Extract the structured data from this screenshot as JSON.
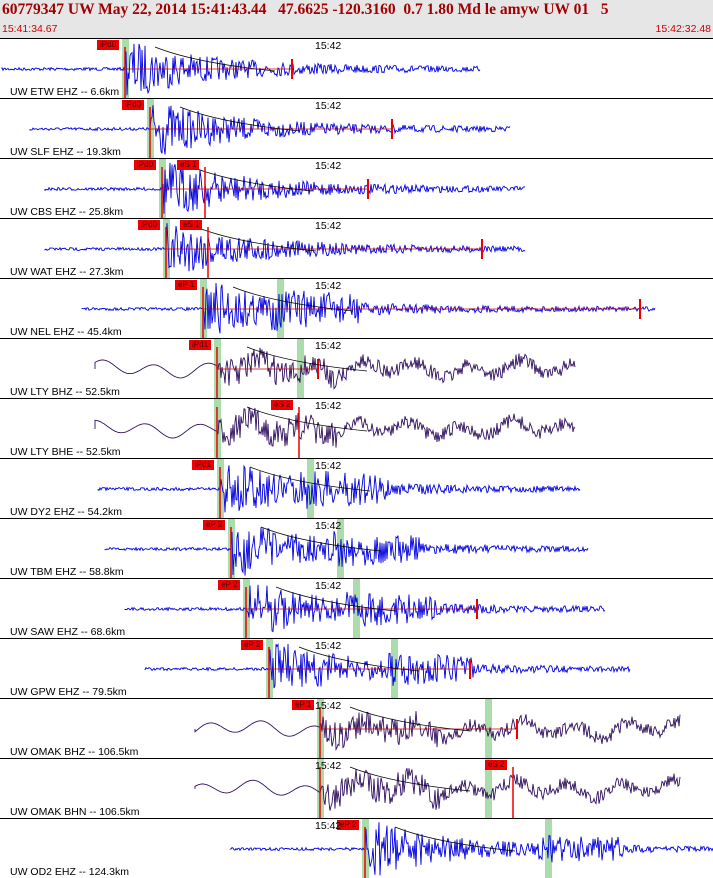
{
  "header": {
    "title": "60779347 UW May 22, 2014 15:41:43.44   47.6625 -120.3160  0.7 1.80 Md le amyw UW 01   5",
    "time_start": "15:41:34.67",
    "time_end": "15:42:32.48"
  },
  "colors": {
    "header_bg": "#e6e6e6",
    "title": "#a00000",
    "trace_blue": "#0000e0",
    "trace_dark": "#301060",
    "pick_red": "#ee0000",
    "window_green": "#8fd08f"
  },
  "traces": [
    {
      "station": "UW ETW EHZ -- 6.6km",
      "time_label": "15:42",
      "pick_label": "iPd0",
      "pick2_label": "",
      "color": "blue"
    },
    {
      "station": "UW SLF EHZ -- 19.3km",
      "time_label": "15:42",
      "pick_label": "iPd0",
      "pick2_label": "",
      "color": "blue"
    },
    {
      "station": "UW CBS EHZ -- 25.8km",
      "time_label": "15:42",
      "pick_label": "iPd0",
      "pick2_label": "eS 1",
      "color": "blue"
    },
    {
      "station": "UW WAT EHZ -- 27.3km",
      "time_label": "15:42",
      "pick_label": "iPd0",
      "pick2_label": "eS 1",
      "color": "blue"
    },
    {
      "station": "UW NEL EHZ -- 45.4km",
      "time_label": "15:42",
      "pick_label": "eP 1",
      "pick2_label": "",
      "color": "blue"
    },
    {
      "station": "UW LTY BHZ -- 52.5km",
      "time_label": "15:42",
      "pick_label": "iPd1",
      "pick2_label": "",
      "color": "dark"
    },
    {
      "station": "UW LTY BHE -- 52.5km",
      "time_label": "15:42",
      "pick_label": "",
      "pick2_label": "eS 2",
      "color": "dark"
    },
    {
      "station": "UW DY2 EHZ -- 54.2km",
      "time_label": "15:42",
      "pick_label": "iPd1",
      "pick2_label": "",
      "color": "blue"
    },
    {
      "station": "UW TBM EHZ -- 58.8km",
      "time_label": "15:42",
      "pick_label": "eP 2",
      "pick2_label": "",
      "color": "blue"
    },
    {
      "station": "UW SAW EHZ -- 68.6km",
      "time_label": "15:42",
      "pick_label": "eP 2",
      "pick2_label": "",
      "color": "blue"
    },
    {
      "station": "UW GPW EHZ -- 79.5km",
      "time_label": "15:42",
      "pick_label": "eP 2",
      "pick2_label": "",
      "color": "blue"
    },
    {
      "station": "UW OMAK BHZ -- 106.5km",
      "time_label": "15:42",
      "pick_label": "eP 1",
      "pick2_label": "",
      "color": "dark"
    },
    {
      "station": "UW OMAK BHN -- 106.5km",
      "time_label": "15:42",
      "pick_label": "",
      "pick2_label": "eS 2",
      "color": "dark"
    },
    {
      "station": "UW OD2 EHZ -- 124.3km",
      "time_label": "15:42",
      "pick_label": "eP 2",
      "pick2_label": "",
      "color": "blue"
    }
  ]
}
